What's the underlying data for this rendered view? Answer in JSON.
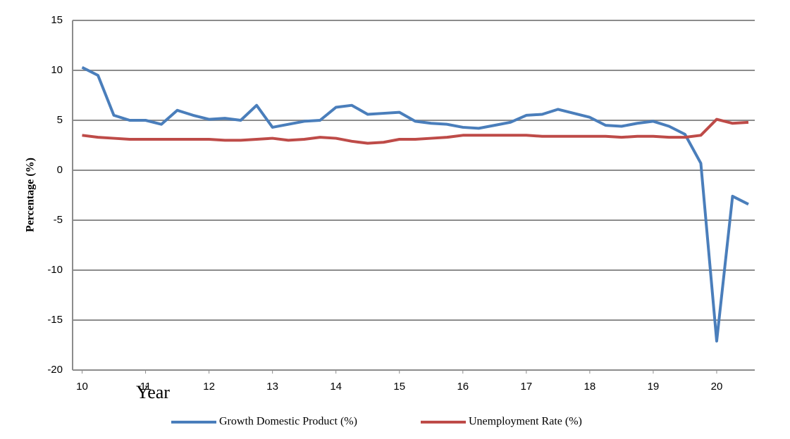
{
  "chart_data": {
    "type": "line",
    "y_label": "Percentage (%)",
    "x_label": "Year",
    "x": [
      10,
      10.25,
      10.5,
      10.75,
      11,
      11.25,
      11.5,
      11.75,
      12,
      12.25,
      12.5,
      12.75,
      13,
      13.25,
      13.5,
      13.75,
      14,
      14.25,
      14.5,
      14.75,
      15,
      15.25,
      15.5,
      15.75,
      16,
      16.25,
      16.5,
      16.75,
      17,
      17.25,
      17.5,
      17.75,
      18,
      18.25,
      18.5,
      18.75,
      19,
      19.25,
      19.5,
      19.75,
      20,
      20.25,
      20.5
    ],
    "series": [
      {
        "name": "Growth Domestic Product (%)",
        "color": "#4a7ebb",
        "values": [
          10.3,
          9.5,
          5.5,
          5.0,
          5.0,
          4.6,
          6.0,
          5.5,
          5.1,
          5.2,
          5.0,
          6.5,
          4.3,
          4.6,
          4.9,
          5.0,
          6.3,
          6.5,
          5.6,
          5.7,
          5.8,
          4.9,
          4.7,
          4.6,
          4.3,
          4.2,
          4.5,
          4.8,
          5.5,
          5.6,
          6.1,
          5.7,
          5.3,
          4.5,
          4.4,
          4.7,
          4.9,
          4.4,
          3.6,
          0.7,
          -17.1,
          -2.6,
          -3.4
        ]
      },
      {
        "name": "Unemployment Rate (%)",
        "color": "#be4b48",
        "values": [
          3.5,
          3.3,
          3.2,
          3.1,
          3.1,
          3.1,
          3.1,
          3.1,
          3.1,
          3.0,
          3.0,
          3.1,
          3.2,
          3.0,
          3.1,
          3.3,
          3.2,
          2.9,
          2.7,
          2.8,
          3.1,
          3.1,
          3.2,
          3.3,
          3.5,
          3.5,
          3.5,
          3.5,
          3.5,
          3.4,
          3.4,
          3.4,
          3.4,
          3.4,
          3.3,
          3.4,
          3.4,
          3.3,
          3.3,
          3.5,
          5.1,
          4.7,
          4.8
        ]
      }
    ],
    "xlim": [
      9.85,
      20.6
    ],
    "xticks": [
      10,
      11,
      12,
      13,
      14,
      15,
      16,
      17,
      18,
      19,
      20
    ],
    "ylim": [
      -20,
      15
    ],
    "yticks": [
      -20,
      -15,
      -10,
      -5,
      0,
      5,
      10,
      15
    ],
    "grid": true,
    "legend": "bottom"
  }
}
